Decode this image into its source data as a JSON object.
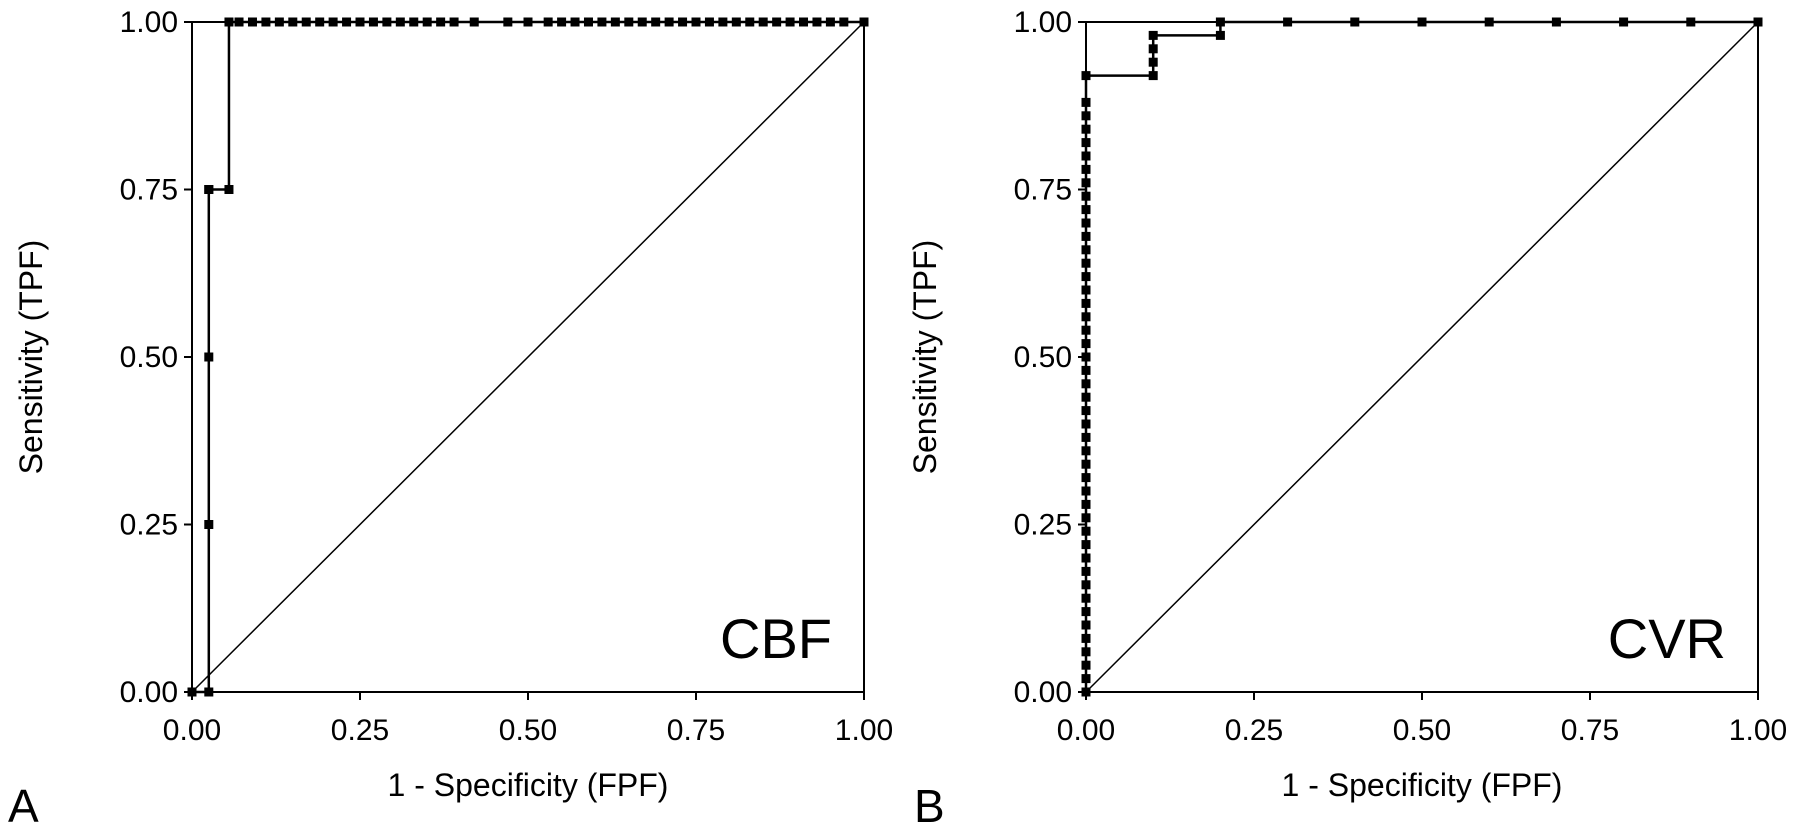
{
  "colors": {
    "line": "#000000",
    "marker": "#000000",
    "background": "#ffffff"
  },
  "chart_data": [
    {
      "type": "line",
      "panel_letter": "A",
      "annotation": "CBF",
      "xlabel": "1 - Specificity (FPF)",
      "ylabel": "Sensitivity (TPF)",
      "xlim": [
        0,
        1
      ],
      "ylim": [
        0,
        1
      ],
      "xticks": [
        "0.00",
        "0.25",
        "0.50",
        "0.75",
        "1.00"
      ],
      "yticks": [
        "0.00",
        "0.25",
        "0.50",
        "0.75",
        "1.00"
      ],
      "grid": false,
      "reference_line": [
        [
          0,
          0
        ],
        [
          1,
          1
        ]
      ],
      "series": [
        {
          "x": [
            0,
            0.025,
            0.025,
            0.025,
            0.025,
            0.025,
            0.055,
            0.055,
            0.07,
            0.09,
            0.11,
            0.13,
            0.15,
            0.17,
            0.19,
            0.21,
            0.23,
            0.25,
            0.27,
            0.29,
            0.31,
            0.33,
            0.35,
            0.37,
            0.39,
            0.42,
            0.47,
            0.5,
            0.53,
            0.55,
            0.57,
            0.59,
            0.61,
            0.63,
            0.65,
            0.67,
            0.69,
            0.71,
            0.73,
            0.75,
            0.77,
            0.79,
            0.81,
            0.83,
            0.85,
            0.87,
            0.89,
            0.91,
            0.93,
            0.95,
            0.97,
            1.0
          ],
          "y": [
            0,
            0,
            0.25,
            0.5,
            0.75,
            0.75,
            0.75,
            1,
            1,
            1,
            1,
            1,
            1,
            1,
            1,
            1,
            1,
            1,
            1,
            1,
            1,
            1,
            1,
            1,
            1,
            1,
            1,
            1,
            1,
            1,
            1,
            1,
            1,
            1,
            1,
            1,
            1,
            1,
            1,
            1,
            1,
            1,
            1,
            1,
            1,
            1,
            1,
            1,
            1,
            1,
            1,
            1
          ]
        }
      ]
    },
    {
      "type": "line",
      "panel_letter": "B",
      "annotation": "CVR",
      "xlabel": "1 - Specificity (FPF)",
      "ylabel": "Sensitivity (TPF)",
      "xlim": [
        0,
        1
      ],
      "ylim": [
        0,
        1
      ],
      "xticks": [
        "0.00",
        "0.25",
        "0.50",
        "0.75",
        "1.00"
      ],
      "yticks": [
        "0.00",
        "0.25",
        "0.50",
        "0.75",
        "1.00"
      ],
      "grid": false,
      "reference_line": [
        [
          0,
          0
        ],
        [
          1,
          1
        ]
      ],
      "series": [
        {
          "x": [
            0,
            0,
            0,
            0,
            0,
            0,
            0,
            0,
            0,
            0,
            0,
            0,
            0,
            0,
            0,
            0,
            0,
            0,
            0,
            0,
            0,
            0,
            0,
            0,
            0,
            0,
            0,
            0,
            0,
            0,
            0,
            0,
            0,
            0,
            0,
            0,
            0,
            0,
            0,
            0,
            0,
            0,
            0,
            0,
            0,
            0,
            0.1,
            0.1,
            0.1,
            0.1,
            0.2,
            0.2,
            0.3,
            0.4,
            0.5,
            0.6,
            0.7,
            0.8,
            0.9,
            1.0
          ],
          "y": [
            0,
            0.02,
            0.04,
            0.06,
            0.08,
            0.1,
            0.12,
            0.14,
            0.16,
            0.18,
            0.2,
            0.22,
            0.24,
            0.26,
            0.28,
            0.3,
            0.32,
            0.34,
            0.36,
            0.38,
            0.4,
            0.42,
            0.44,
            0.46,
            0.48,
            0.5,
            0.52,
            0.54,
            0.56,
            0.58,
            0.6,
            0.62,
            0.64,
            0.66,
            0.68,
            0.7,
            0.72,
            0.74,
            0.76,
            0.78,
            0.8,
            0.82,
            0.84,
            0.86,
            0.88,
            0.92,
            0.92,
            0.94,
            0.96,
            0.98,
            0.98,
            1,
            1,
            1,
            1,
            1,
            1,
            1,
            1,
            1
          ]
        }
      ]
    }
  ]
}
